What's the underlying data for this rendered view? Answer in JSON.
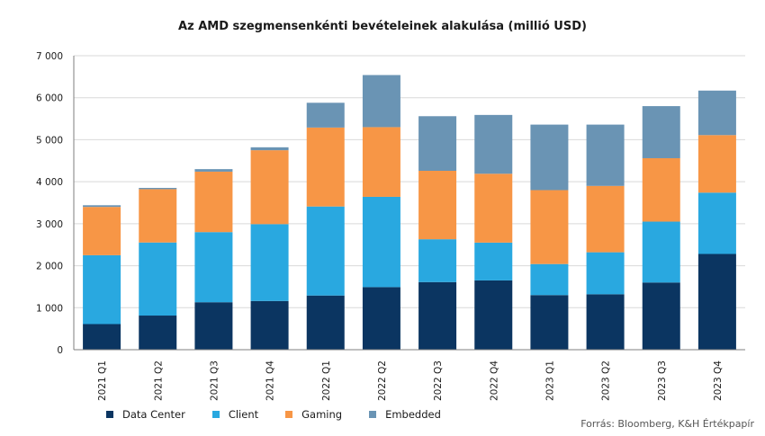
{
  "chart_data": {
    "type": "bar",
    "stacked": true,
    "title": "Az AMD szegmensenkénti bevételeinek alakulása (millió USD)",
    "categories": [
      "2021 Q1",
      "2021 Q2",
      "2021 Q3",
      "2021 Q4",
      "2022 Q1",
      "2022 Q2",
      "2022 Q3",
      "2022 Q4",
      "2023 Q1",
      "2023 Q2",
      "2023 Q3",
      "2023 Q4"
    ],
    "ylim": [
      0,
      7000
    ],
    "yticks": [
      0,
      1000,
      2000,
      3000,
      4000,
      5000,
      6000,
      7000
    ],
    "ytick_labels": [
      "0",
      "1 000",
      "2 000",
      "3 000",
      "4 000",
      "5 000",
      "6 000",
      "7 000"
    ],
    "grid": true,
    "legend_position": "bottom-left",
    "series": [
      {
        "name": "Data Center",
        "color": "#0b3561",
        "values": [
          610,
          813,
          1130,
          1160,
          1290,
          1490,
          1610,
          1650,
          1300,
          1320,
          1600,
          2280
        ]
      },
      {
        "name": "Client",
        "color": "#29a8e0",
        "values": [
          1640,
          1740,
          1670,
          1830,
          2120,
          2150,
          1020,
          900,
          740,
          1000,
          1450,
          1460
        ]
      },
      {
        "name": "Gaming",
        "color": "#f79646",
        "values": [
          1150,
          1270,
          1440,
          1760,
          1880,
          1660,
          1630,
          1640,
          1760,
          1580,
          1510,
          1370
        ]
      },
      {
        "name": "Embedded",
        "color": "#6a94b4",
        "values": [
          40,
          30,
          60,
          70,
          590,
          1240,
          1300,
          1400,
          1560,
          1460,
          1240,
          1060
        ]
      }
    ]
  },
  "source": "Forrás: Bloomberg, K&H Értékpapír"
}
